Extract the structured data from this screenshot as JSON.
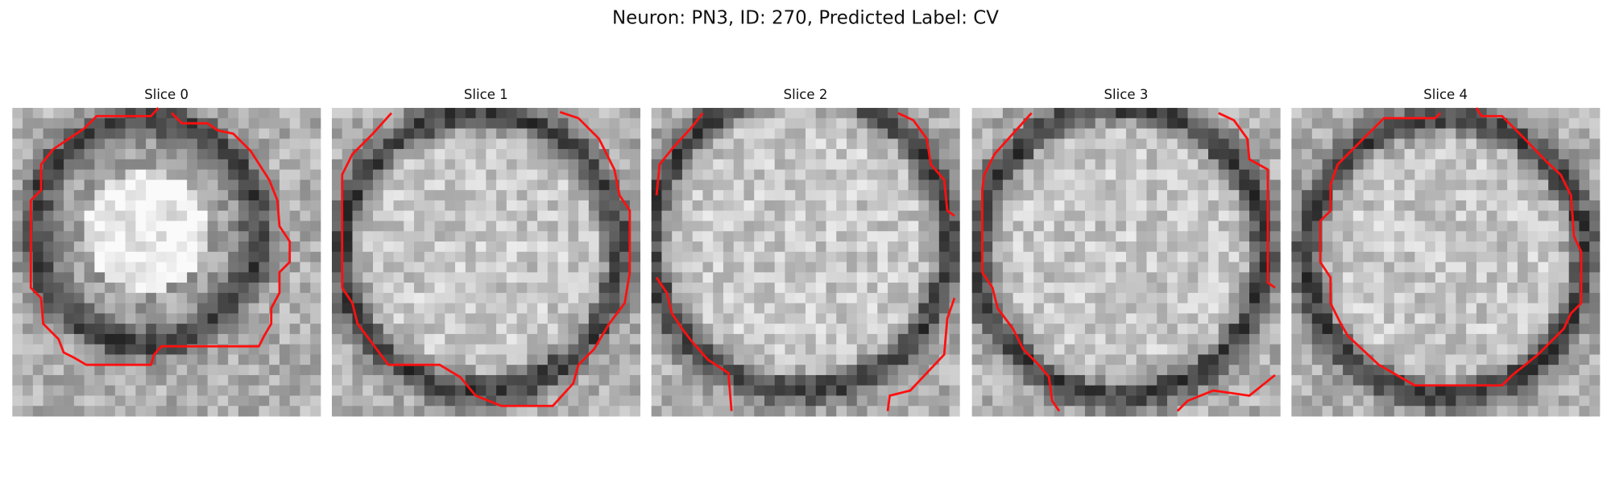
{
  "title": "Neuron: PN3, ID: 270, Predicted Label: CV",
  "panels": [
    {
      "title": "Slice 0"
    },
    {
      "title": "Slice 1"
    },
    {
      "title": "Slice 2"
    },
    {
      "title": "Slice 3"
    },
    {
      "title": "Slice 4"
    }
  ]
}
